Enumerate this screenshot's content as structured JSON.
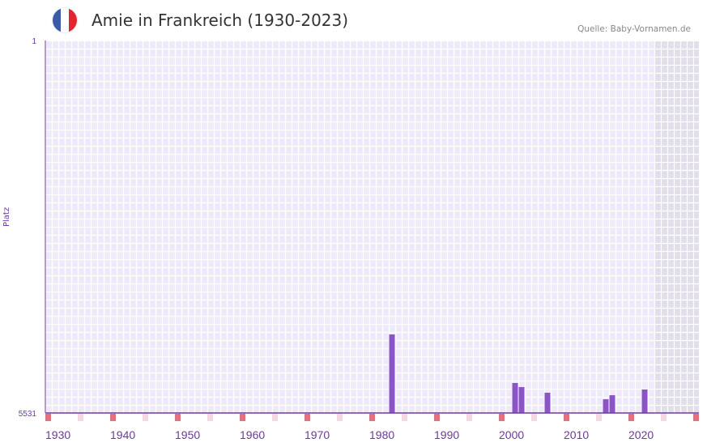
{
  "header": {
    "title": "Amie in Frankreich (1930-2023)",
    "source": "Quelle: Baby-Vornamen.de"
  },
  "colors": {
    "bar": "#8b55c8",
    "axis": "#6a3aa0",
    "flag": [
      "#3b5ba8",
      "#ffffff",
      "#e4242e"
    ]
  },
  "chart_data": {
    "type": "bar",
    "title": "Amie in Frankreich (1930-2023)",
    "ylabel": "Platz",
    "xlabel": "",
    "ylim": [
      5531,
      1
    ],
    "y_ticks": [
      "1",
      "5531"
    ],
    "x_ticks": [
      "1930",
      "1940",
      "1950",
      "1960",
      "1970",
      "1980",
      "1990",
      "2000",
      "2010",
      "2020"
    ],
    "xlim": [
      1928,
      2028
    ],
    "shaded_from": 2022,
    "categories": [
      1981,
      2000,
      2001,
      2005,
      2014,
      2015,
      2020
    ],
    "values": [
      4365,
      5086,
      5146,
      5230,
      5327,
      5267,
      5182
    ]
  }
}
